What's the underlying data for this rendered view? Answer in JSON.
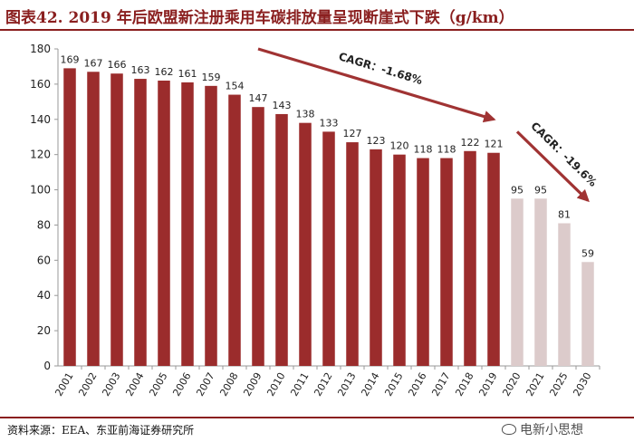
{
  "title": "图表42. 2019 年后欧盟新注册乘用车碳排放量呈现断崖式下跌（g/km）",
  "source": "资料来源：EEA、东亚前海证券研究所",
  "watermark": "电新小思想",
  "chart_data": {
    "type": "bar",
    "title": "2019 年后欧盟新注册乘用车碳排放量呈现断崖式下跌（g/km）",
    "categories": [
      "2001",
      "2002",
      "2003",
      "2004",
      "2005",
      "2006",
      "2007",
      "2008",
      "2009",
      "2010",
      "2011",
      "2012",
      "2013",
      "2014",
      "2015",
      "2016",
      "2017",
      "2018",
      "2019",
      "2020",
      "2021",
      "2025",
      "2030"
    ],
    "values": [
      169,
      167,
      166,
      163,
      162,
      161,
      159,
      154,
      147,
      143,
      138,
      133,
      127,
      123,
      120,
      118,
      118,
      122,
      121,
      95,
      95,
      81,
      59
    ],
    "historical_count": 19,
    "ylim": [
      0,
      180
    ],
    "yticks": [
      0,
      20,
      40,
      60,
      80,
      100,
      120,
      140,
      160,
      180
    ],
    "xlabel": "",
    "ylabel": "",
    "colors": {
      "historical": "#9b2c2c",
      "target": "#dccbcb",
      "arrow": "#a03333",
      "axis": "#999999",
      "text": "#222222"
    },
    "annotations": [
      {
        "text": "CAGR：-1.68%",
        "from_index": 8,
        "from_value": 180,
        "to_index": 18,
        "to_value": 140
      },
      {
        "text": "CAGR：-19.6%",
        "from_index": 19,
        "from_value": 133,
        "to_index": 22,
        "to_value": 94
      }
    ]
  }
}
